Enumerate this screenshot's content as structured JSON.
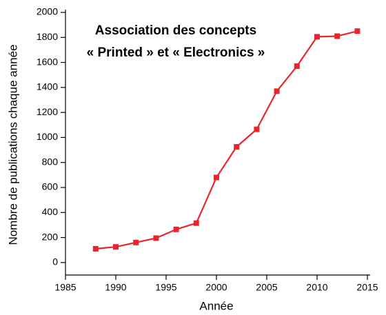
{
  "chart_data": {
    "type": "line",
    "title": [
      "Association des concepts",
      "« Printed » et « Electronics »"
    ],
    "x_label": "Année",
    "y_label": "Nombre de publications chaque année",
    "x": [
      1988,
      1990,
      1992,
      1994,
      1996,
      1998,
      2000,
      2002,
      2004,
      2006,
      2008,
      2010,
      2012,
      2014
    ],
    "series": [
      {
        "name": "Publications",
        "color": "#e8242c",
        "values": [
          110,
          125,
          160,
          195,
          265,
          315,
          680,
          925,
          1065,
          1370,
          1570,
          1805,
          1810,
          1850
        ]
      }
    ],
    "xlim": [
      1985,
      2015
    ],
    "xticks": [
      1985,
      1990,
      1995,
      2000,
      2005,
      2010,
      2015
    ],
    "ylim": [
      -100,
      2000
    ],
    "yticks": [
      0,
      200,
      400,
      600,
      800,
      1000,
      1200,
      1400,
      1600,
      1800,
      2000
    ],
    "grid": false
  }
}
